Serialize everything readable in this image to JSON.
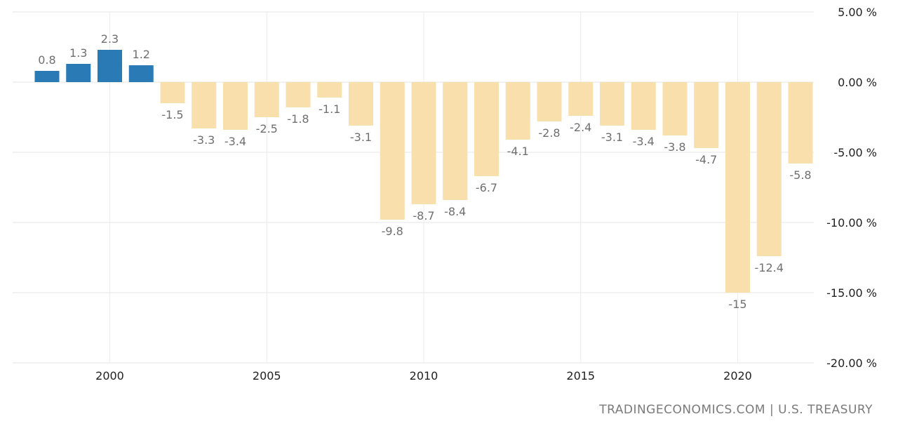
{
  "source": "TRADINGECONOMICS.COM | U.S. TREASURY",
  "chart_data": {
    "type": "bar",
    "title": "",
    "xlabel": "",
    "ylabel": "",
    "ylim": [
      -20,
      5
    ],
    "yticks": [
      "5.00 %",
      "0.00 %",
      "-5.00 %",
      "-10.00 %",
      "-15.00 %",
      "-20.00 %"
    ],
    "ytick_values": [
      5,
      0,
      -5,
      -10,
      -15,
      -20
    ],
    "xticks": [
      "2000",
      "2005",
      "2010",
      "2015",
      "2020"
    ],
    "categories": [
      "1998",
      "1999",
      "2000",
      "2001",
      "2002",
      "2003",
      "2004",
      "2005",
      "2006",
      "2007",
      "2008",
      "2009",
      "2010",
      "2011",
      "2012",
      "2013",
      "2014",
      "2015",
      "2016",
      "2017",
      "2018",
      "2019",
      "2020",
      "2021",
      "2022"
    ],
    "values": [
      0.8,
      1.3,
      2.3,
      1.2,
      -1.5,
      -3.3,
      -3.4,
      -2.5,
      -1.8,
      -1.1,
      -3.1,
      -9.8,
      -8.7,
      -8.4,
      -6.7,
      -4.1,
      -2.8,
      -2.4,
      -3.1,
      -3.4,
      -3.8,
      -4.7,
      -15,
      -12.4,
      -5.8
    ],
    "labels": [
      "0.8",
      "1.3",
      "2.3",
      "1.2",
      "-1.5",
      "-3.3",
      "-3.4",
      "-2.5",
      "-1.8",
      "-1.1",
      "-3.1",
      "-9.8",
      "-8.7",
      "-8.4",
      "-6.7",
      "-4.1",
      "-2.8",
      "-2.4",
      "-3.1",
      "-3.4",
      "-3.8",
      "-4.7",
      "-15",
      "-12.4",
      "-5.8"
    ],
    "grid": true,
    "colors": {
      "positive": "#2a7ab5",
      "negative": "#f8dfab"
    }
  }
}
